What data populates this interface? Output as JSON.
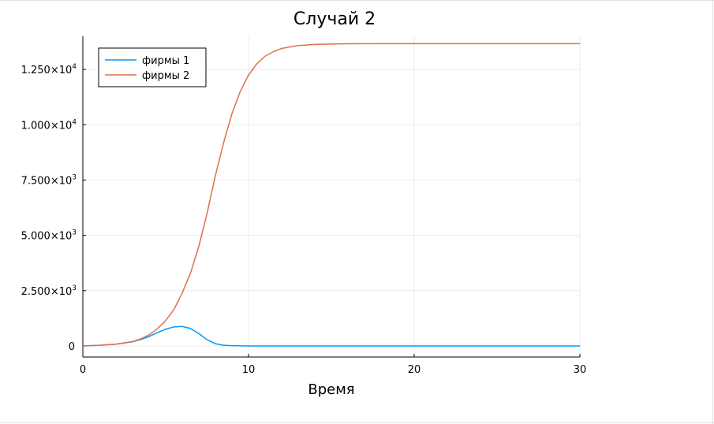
{
  "chart_data": {
    "type": "line",
    "title": "Случай 2",
    "xlabel": "Время",
    "ylabel": "",
    "xlim": [
      0,
      30
    ],
    "ylim": [
      -500,
      14000
    ],
    "x_ticks": [
      {
        "value": 0,
        "label": "0"
      },
      {
        "value": 10,
        "label": "10"
      },
      {
        "value": 20,
        "label": "20"
      },
      {
        "value": 30,
        "label": "30"
      }
    ],
    "y_ticks": [
      {
        "value": 0,
        "mantissa": "0",
        "exp": ""
      },
      {
        "value": 2500,
        "mantissa": "2.500×10",
        "exp": "3"
      },
      {
        "value": 5000,
        "mantissa": "5.000×10",
        "exp": "3"
      },
      {
        "value": 7500,
        "mantissa": "7.500×10",
        "exp": "3"
      },
      {
        "value": 10000,
        "mantissa": "1.000×10",
        "exp": "4"
      },
      {
        "value": 12500,
        "mantissa": "1.250×10",
        "exp": "4"
      }
    ],
    "grid": true,
    "legend_position": "top-left",
    "series": [
      {
        "name": "фирмы 1",
        "color": "#009af9",
        "x": [
          0,
          1,
          2,
          3,
          3.5,
          4,
          4.5,
          5,
          5.5,
          6,
          6.5,
          7,
          7.5,
          8,
          8.5,
          9,
          10,
          12,
          15,
          20,
          25,
          30
        ],
        "y": [
          0,
          30,
          80,
          190,
          290,
          430,
          600,
          760,
          860,
          880,
          790,
          560,
          280,
          100,
          30,
          10,
          0,
          0,
          0,
          0,
          0,
          0
        ]
      },
      {
        "name": "фирмы 2",
        "color": "#e26f46",
        "x": [
          0,
          1,
          2,
          3,
          3.5,
          4,
          4.5,
          5,
          5.5,
          6,
          6.5,
          7,
          7.5,
          8,
          8.5,
          9,
          9.5,
          10,
          10.5,
          11,
          11.5,
          12,
          13,
          14,
          15,
          16,
          18,
          20,
          25,
          30
        ],
        "y": [
          0,
          30,
          80,
          200,
          320,
          500,
          780,
          1150,
          1650,
          2400,
          3300,
          4500,
          6000,
          7700,
          9200,
          10500,
          11500,
          12250,
          12750,
          13100,
          13300,
          13450,
          13580,
          13630,
          13650,
          13660,
          13665,
          13665,
          13665,
          13665
        ]
      }
    ]
  }
}
